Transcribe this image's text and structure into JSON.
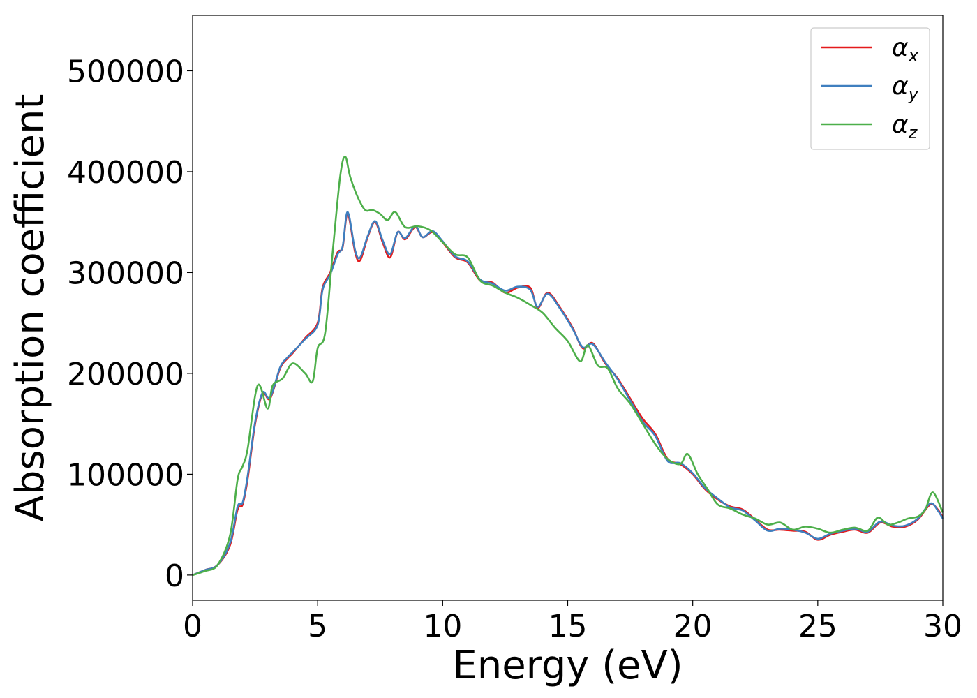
{
  "chart_data": {
    "type": "line",
    "title": "",
    "xlabel": "Energy (eV)",
    "ylabel": "Absorption coefficient",
    "xlim": [
      0,
      30
    ],
    "ylim": [
      -25000,
      555000
    ],
    "xticks": [
      0,
      5,
      10,
      15,
      20,
      25,
      30
    ],
    "xtick_labels": [
      "0",
      "5",
      "10",
      "15",
      "20",
      "25",
      "30"
    ],
    "yticks": [
      0,
      100000,
      200000,
      300000,
      400000,
      500000
    ],
    "ytick_labels": [
      "0",
      "100000",
      "200000",
      "300000",
      "400000",
      "500000"
    ],
    "grid": false,
    "legend_position": "top-right",
    "series": [
      {
        "name": "α",
        "subscript": "x",
        "color": "#e41a1c",
        "x": [
          0,
          0.5,
          1,
          1.5,
          1.8,
          2.0,
          2.2,
          2.5,
          2.8,
          3.1,
          3.5,
          3.8,
          4.0,
          4.5,
          5.0,
          5.2,
          5.5,
          5.8,
          6.0,
          6.2,
          6.5,
          6.7,
          7.0,
          7.3,
          7.6,
          7.9,
          8.2,
          8.5,
          8.9,
          9.2,
          9.6,
          10,
          10.5,
          11,
          11.5,
          12,
          12.5,
          13,
          13.5,
          13.8,
          14.2,
          14.7,
          15.2,
          15.6,
          16,
          16.5,
          17,
          17.5,
          18,
          18.5,
          19,
          19.5,
          20,
          20.5,
          21,
          21.5,
          22,
          22.5,
          23,
          23.5,
          24,
          24.5,
          25,
          25.5,
          26,
          26.5,
          27,
          27.5,
          28,
          28.5,
          29,
          29.5,
          29.8,
          30
        ],
        "y": [
          0,
          5000,
          10000,
          30000,
          65000,
          70000,
          95000,
          150000,
          180000,
          175000,
          205000,
          215000,
          220000,
          235000,
          250000,
          285000,
          300000,
          320000,
          325000,
          358000,
          320000,
          312000,
          335000,
          350000,
          330000,
          315000,
          340000,
          333000,
          345000,
          335000,
          340000,
          330000,
          315000,
          310000,
          292000,
          290000,
          280000,
          285000,
          285000,
          265000,
          280000,
          265000,
          245000,
          225000,
          230000,
          210000,
          195000,
          175000,
          155000,
          140000,
          115000,
          110000,
          100000,
          85000,
          75000,
          68000,
          65000,
          55000,
          45000,
          45000,
          44000,
          43000,
          35000,
          40000,
          43000,
          45000,
          42000,
          52000,
          48000,
          48000,
          55000,
          70000,
          65000,
          57000
        ]
      },
      {
        "name": "α",
        "subscript": "y",
        "color": "#3f7fbf",
        "x": [
          0,
          0.5,
          1,
          1.5,
          1.8,
          2.0,
          2.2,
          2.5,
          2.8,
          3.1,
          3.5,
          3.8,
          4.0,
          4.5,
          5.0,
          5.2,
          5.5,
          5.8,
          6.0,
          6.2,
          6.5,
          6.7,
          7.0,
          7.3,
          7.6,
          7.9,
          8.2,
          8.5,
          8.9,
          9.2,
          9.6,
          10,
          10.5,
          11,
          11.5,
          12,
          12.5,
          13,
          13.5,
          13.8,
          14.2,
          14.7,
          15.2,
          15.6,
          16,
          16.5,
          17,
          17.5,
          18,
          18.5,
          19,
          19.5,
          20,
          20.5,
          21,
          21.5,
          22,
          22.5,
          23,
          23.5,
          24,
          24.5,
          25,
          25.5,
          26,
          26.5,
          27,
          27.5,
          28,
          28.5,
          29,
          29.5,
          29.8,
          30
        ],
        "y": [
          0,
          5000,
          10000,
          32000,
          68000,
          72000,
          98000,
          152000,
          181000,
          176000,
          206000,
          216000,
          221000,
          234000,
          248000,
          283000,
          298000,
          318000,
          326000,
          360000,
          322000,
          315000,
          336000,
          351000,
          332000,
          318000,
          340000,
          334000,
          346000,
          335000,
          341000,
          331000,
          316000,
          311000,
          293000,
          289000,
          282000,
          286000,
          283000,
          266000,
          279000,
          264000,
          244000,
          226000,
          229000,
          211000,
          194000,
          173000,
          152000,
          138000,
          113000,
          111000,
          101000,
          86000,
          76000,
          67000,
          64000,
          54000,
          44000,
          46000,
          45000,
          42000,
          36000,
          41000,
          44000,
          46000,
          43000,
          53000,
          49000,
          49000,
          56000,
          71000,
          64000,
          56000
        ]
      },
      {
        "name": "α",
        "subscript": "z",
        "color": "#4daf4a",
        "x": [
          0,
          0.5,
          1,
          1.5,
          1.8,
          2.0,
          2.2,
          2.6,
          3.0,
          3.2,
          3.6,
          4.0,
          4.5,
          4.8,
          5.0,
          5.3,
          5.6,
          5.9,
          6.1,
          6.3,
          6.6,
          6.9,
          7.2,
          7.5,
          7.8,
          8.1,
          8.5,
          9.0,
          9.5,
          10,
          10.5,
          11,
          11.5,
          12,
          12.5,
          13,
          13.5,
          14,
          14.5,
          15,
          15.5,
          15.8,
          16.2,
          16.6,
          17,
          17.5,
          18,
          18.5,
          19,
          19.5,
          19.8,
          20.2,
          20.6,
          21,
          21.5,
          22,
          22.5,
          23,
          23.5,
          24,
          24.5,
          25,
          25.5,
          26,
          26.5,
          27,
          27.4,
          27.8,
          28.2,
          28.6,
          29,
          29.3,
          29.6,
          30
        ],
        "y": [
          0,
          4000,
          10000,
          40000,
          95000,
          108000,
          125000,
          188000,
          165000,
          188000,
          195000,
          210000,
          200000,
          192000,
          225000,
          240000,
          320000,
          395000,
          415000,
          395000,
          375000,
          362000,
          362000,
          358000,
          352000,
          360000,
          345000,
          346000,
          342000,
          330000,
          318000,
          315000,
          292000,
          287000,
          280000,
          275000,
          268000,
          260000,
          245000,
          232000,
          212000,
          228000,
          208000,
          205000,
          185000,
          170000,
          150000,
          130000,
          115000,
          110000,
          120000,
          100000,
          85000,
          70000,
          66000,
          60000,
          56000,
          50000,
          52000,
          45000,
          48000,
          46000,
          42000,
          45000,
          47000,
          44000,
          57000,
          50000,
          52000,
          56000,
          58000,
          65000,
          82000,
          62000
        ]
      }
    ]
  }
}
